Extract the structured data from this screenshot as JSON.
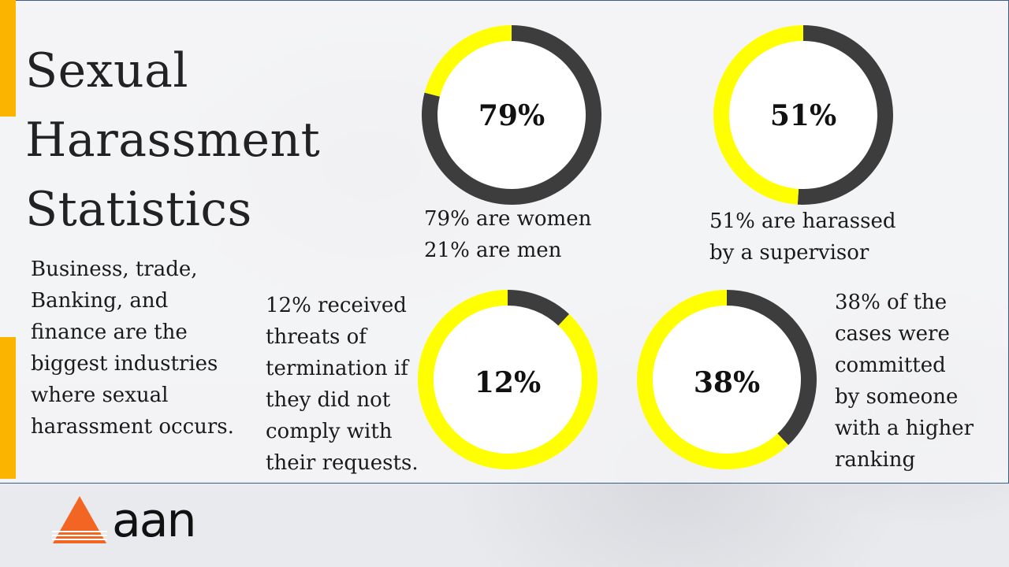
{
  "title_lines": [
    "Sexual",
    "Harassment",
    "Statistics"
  ],
  "industries_lines": [
    "Business, trade,",
    "Banking, and",
    "finance are the",
    "biggest industries",
    "where sexual",
    "harassment occurs."
  ],
  "logo": {
    "text": "aan",
    "icon": "triangle-logo-icon",
    "color": "#f26522"
  },
  "colors": {
    "dark": "#3d3d3d",
    "highlight": "#ffff00",
    "accent": "#fbb400",
    "border": "#3c5d8c"
  },
  "chart_data": [
    {
      "type": "pie",
      "label": "79%",
      "values": [
        79,
        21
      ],
      "colors": [
        "#3d3d3d",
        "#ffff00"
      ],
      "caption_lines": [
        "79% are women",
        "21% are men"
      ]
    },
    {
      "type": "pie",
      "label": "51%",
      "values": [
        51,
        49
      ],
      "colors": [
        "#3d3d3d",
        "#ffff00"
      ],
      "caption_lines": [
        "51% are harassed",
        "by a supervisor"
      ]
    },
    {
      "type": "pie",
      "label": "12%",
      "values": [
        12,
        88
      ],
      "colors": [
        "#3d3d3d",
        "#ffff00"
      ],
      "caption_lines": [
        "12% received",
        "threats of",
        "termination if",
        "they did not",
        "comply with",
        "their requests."
      ]
    },
    {
      "type": "pie",
      "label": "38%",
      "values": [
        38,
        62
      ],
      "colors": [
        "#3d3d3d",
        "#ffff00"
      ],
      "caption_lines": [
        "38% of the",
        "cases were",
        "committed",
        "by someone",
        "with a higher",
        "ranking"
      ]
    }
  ]
}
